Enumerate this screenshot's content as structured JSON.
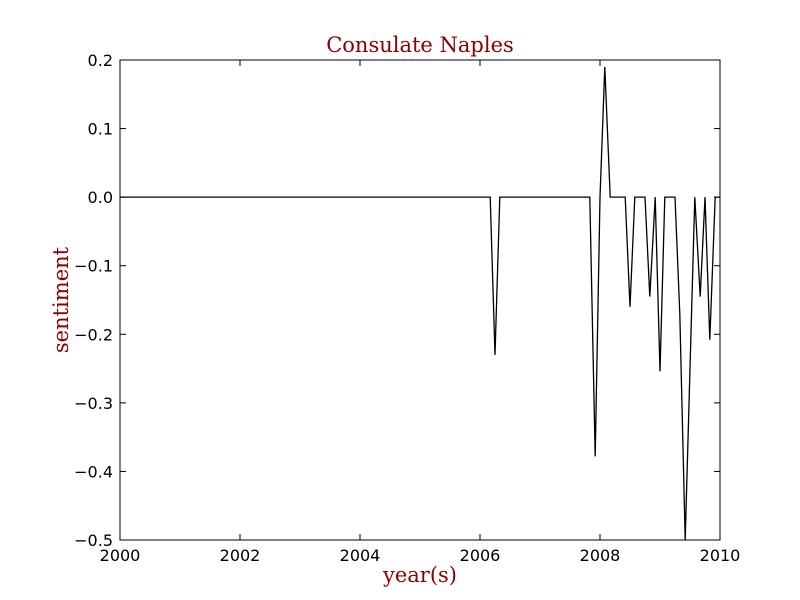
{
  "chart_data": {
    "type": "line",
    "title": "Consulate Naples",
    "xlabel": "year(s)",
    "ylabel": "sentiment",
    "xlim": [
      2000,
      2010
    ],
    "ylim": [
      -0.5,
      0.2
    ],
    "x_ticks": [
      2000,
      2002,
      2004,
      2006,
      2008,
      2010
    ],
    "y_ticks": [
      0.2,
      0.1,
      0.0,
      -0.1,
      -0.2,
      -0.3,
      -0.4,
      -0.5
    ],
    "x_tick_labels": [
      "2000",
      "2002",
      "2004",
      "2006",
      "2008",
      "2010"
    ],
    "y_tick_labels": [
      "0.2",
      "0.1",
      "0.0",
      "−0.1",
      "−0.2",
      "−0.3",
      "−0.4",
      "−0.5"
    ],
    "grid": false,
    "series": [
      {
        "color": "#000000",
        "points": [
          [
            2000.0,
            0.0
          ],
          [
            2006.17,
            0.0
          ],
          [
            2006.25,
            -0.23
          ],
          [
            2006.33,
            0.0
          ],
          [
            2007.83,
            0.0
          ],
          [
            2007.92,
            -0.378
          ],
          [
            2008.0,
            0.0
          ],
          [
            2008.08,
            0.19
          ],
          [
            2008.17,
            0.0
          ],
          [
            2008.42,
            0.0
          ],
          [
            2008.5,
            -0.16
          ],
          [
            2008.58,
            0.0
          ],
          [
            2008.75,
            0.0
          ],
          [
            2008.83,
            -0.145
          ],
          [
            2008.92,
            0.0
          ],
          [
            2009.0,
            -0.254
          ],
          [
            2009.08,
            0.0
          ],
          [
            2009.25,
            0.0
          ],
          [
            2009.33,
            -0.17
          ],
          [
            2009.42,
            -0.5
          ],
          [
            2009.5,
            -0.25
          ],
          [
            2009.58,
            0.0
          ],
          [
            2009.67,
            -0.145
          ],
          [
            2009.75,
            0.0
          ],
          [
            2009.83,
            -0.208
          ],
          [
            2009.92,
            0.0
          ],
          [
            2010.0,
            0.0
          ]
        ]
      }
    ]
  },
  "colors": {
    "title": "#8b0000",
    "axis_label": "#8b0000",
    "line": "#000000",
    "frame": "#000000"
  }
}
